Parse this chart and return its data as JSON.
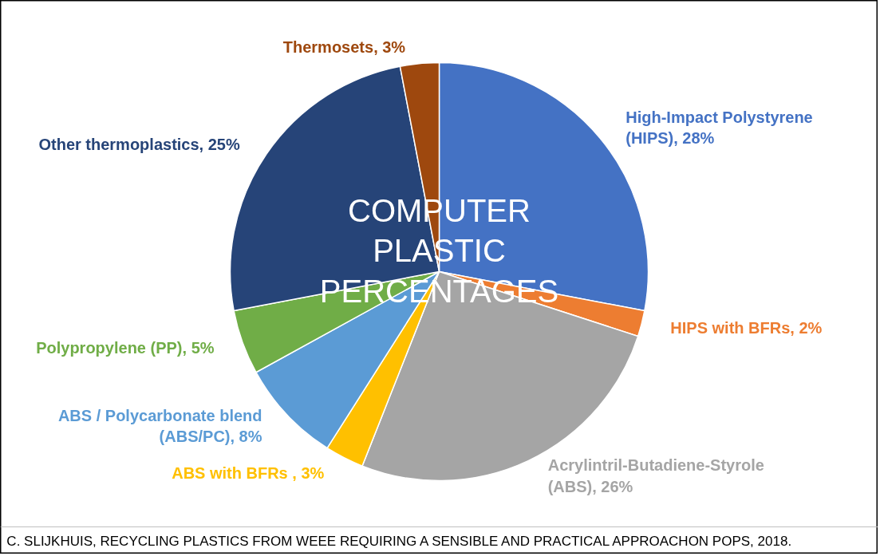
{
  "chart_data": {
    "type": "pie",
    "title": "COMPUTER PLASTIC PERCENTAGES",
    "categories": [
      "High-Impact Polystyrene (HIPS)",
      "HIPS with BFRs",
      "Acrylintril-Butadiene-Styrole (ABS)",
      "ABS with BFRs ",
      "ABS / Polycarbonate blend (ABS/PC)",
      "Polypropylene (PP)",
      "Other thermoplastics",
      "Thermosets"
    ],
    "values": [
      28,
      2,
      26,
      3,
      8,
      5,
      25,
      3
    ],
    "value_labels": [
      "28%",
      "2%",
      "26%",
      "3%",
      "8%",
      "5%",
      "25%",
      "3%"
    ],
    "colors": [
      "#4472c4",
      "#ed7d31",
      "#a5a5a5",
      "#ffc000",
      "#5b9bd5",
      "#70ad47",
      "#264478",
      "#9e480e"
    ],
    "annotations": [
      "C. SLIJKHUIS, RECYCLING PLASTICS FROM WEEE REQUIRING A SENSIBLE AND PRACTICAL APPROACHON POPS, 2018."
    ]
  }
}
